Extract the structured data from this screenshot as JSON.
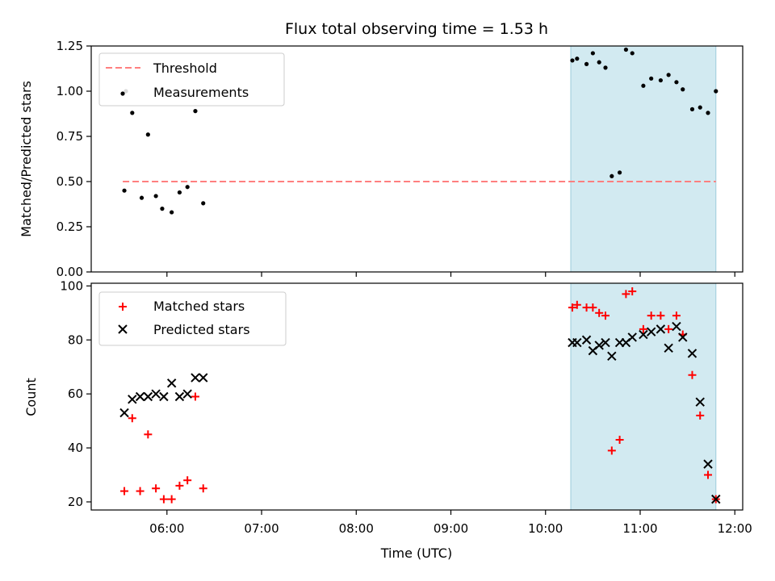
{
  "title": "Flux total observing time = 1.53 h",
  "colors": {
    "threshold": "#ff7f7f",
    "measurement": "#000000",
    "matched": "#ff0000",
    "predicted": "#000000",
    "highlight": "#add8e6"
  },
  "chart_data": [
    {
      "type": "scatter",
      "panel": "top",
      "ylabel": "Matched/Predicted stars",
      "ylim": [
        0,
        1.25
      ],
      "yticks": [
        "0.00",
        "0.25",
        "0.50",
        "0.75",
        "1.00",
        "1.25"
      ],
      "xlim_minutes": [
        "05:12",
        "12:05"
      ],
      "highlight_span": [
        "10:16",
        "11:48"
      ],
      "legend": [
        "Threshold",
        "Measurements"
      ],
      "legend_position": "top-left",
      "threshold": {
        "name": "Threshold",
        "y": 0.5,
        "x_start": "05:32",
        "x_end": "11:48"
      },
      "series": [
        {
          "name": "Measurements",
          "points": [
            [
              "05:33",
              0.45
            ],
            [
              "05:34",
              1.0
            ],
            [
              "05:38",
              0.88
            ],
            [
              "05:44",
              0.41
            ],
            [
              "05:48",
              0.76
            ],
            [
              "05:53",
              0.42
            ],
            [
              "05:57",
              0.35
            ],
            [
              "06:03",
              0.33
            ],
            [
              "06:08",
              0.44
            ],
            [
              "06:13",
              0.47
            ],
            [
              "06:18",
              0.89
            ],
            [
              "06:23",
              0.38
            ],
            [
              "10:17",
              1.17
            ],
            [
              "10:20",
              1.18
            ],
            [
              "10:26",
              1.15
            ],
            [
              "10:30",
              1.21
            ],
            [
              "10:34",
              1.16
            ],
            [
              "10:38",
              1.13
            ],
            [
              "10:42",
              0.53
            ],
            [
              "10:47",
              0.55
            ],
            [
              "10:51",
              1.23
            ],
            [
              "10:55",
              1.21
            ],
            [
              "11:02",
              1.03
            ],
            [
              "11:07",
              1.07
            ],
            [
              "11:13",
              1.06
            ],
            [
              "11:18",
              1.09
            ],
            [
              "11:23",
              1.05
            ],
            [
              "11:27",
              1.01
            ],
            [
              "11:33",
              0.9
            ],
            [
              "11:38",
              0.91
            ],
            [
              "11:43",
              0.88
            ],
            [
              "11:48",
              1.0
            ]
          ]
        }
      ]
    },
    {
      "type": "scatter",
      "panel": "bottom",
      "xlabel": "Time (UTC)",
      "ylabel": "Count",
      "ylim": [
        17,
        101
      ],
      "yticks": [
        "20",
        "40",
        "60",
        "80",
        "100"
      ],
      "xticks": [
        "06:00",
        "07:00",
        "08:00",
        "09:00",
        "10:00",
        "11:00",
        "12:00"
      ],
      "xlim_minutes": [
        "05:12",
        "12:05"
      ],
      "highlight_span": [
        "10:16",
        "11:48"
      ],
      "legend": [
        "Matched stars",
        "Predicted stars"
      ],
      "legend_position": "top-left",
      "series": [
        {
          "name": "Matched stars",
          "marker": "+",
          "points": [
            [
              "05:33",
              24
            ],
            [
              "05:38",
              51
            ],
            [
              "05:43",
              24
            ],
            [
              "05:48",
              45
            ],
            [
              "05:53",
              25
            ],
            [
              "05:58",
              21
            ],
            [
              "06:03",
              21
            ],
            [
              "06:08",
              26
            ],
            [
              "06:13",
              28
            ],
            [
              "06:18",
              59
            ],
            [
              "06:23",
              25
            ],
            [
              "10:17",
              92
            ],
            [
              "10:20",
              93
            ],
            [
              "10:26",
              92
            ],
            [
              "10:30",
              92
            ],
            [
              "10:34",
              90
            ],
            [
              "10:38",
              89
            ],
            [
              "10:42",
              39
            ],
            [
              "10:47",
              43
            ],
            [
              "10:51",
              97
            ],
            [
              "10:55",
              98
            ],
            [
              "11:02",
              84
            ],
            [
              "11:07",
              89
            ],
            [
              "11:13",
              89
            ],
            [
              "11:18",
              84
            ],
            [
              "11:23",
              89
            ],
            [
              "11:27",
              82
            ],
            [
              "11:33",
              67
            ],
            [
              "11:38",
              52
            ],
            [
              "11:43",
              30
            ],
            [
              "11:48",
              21
            ]
          ]
        },
        {
          "name": "Predicted stars",
          "marker": "x",
          "points": [
            [
              "05:33",
              53
            ],
            [
              "05:38",
              58
            ],
            [
              "05:43",
              59
            ],
            [
              "05:48",
              59
            ],
            [
              "05:53",
              60
            ],
            [
              "05:58",
              59
            ],
            [
              "06:03",
              64
            ],
            [
              "06:08",
              59
            ],
            [
              "06:13",
              60
            ],
            [
              "06:18",
              66
            ],
            [
              "06:23",
              66
            ],
            [
              "10:17",
              79
            ],
            [
              "10:20",
              79
            ],
            [
              "10:26",
              80
            ],
            [
              "10:30",
              76
            ],
            [
              "10:34",
              78
            ],
            [
              "10:38",
              79
            ],
            [
              "10:42",
              74
            ],
            [
              "10:47",
              79
            ],
            [
              "10:51",
              79
            ],
            [
              "10:55",
              81
            ],
            [
              "11:02",
              82
            ],
            [
              "11:07",
              83
            ],
            [
              "11:13",
              84
            ],
            [
              "11:18",
              77
            ],
            [
              "11:23",
              85
            ],
            [
              "11:27",
              81
            ],
            [
              "11:33",
              75
            ],
            [
              "11:38",
              57
            ],
            [
              "11:43",
              34
            ],
            [
              "11:48",
              21
            ]
          ]
        }
      ]
    }
  ]
}
